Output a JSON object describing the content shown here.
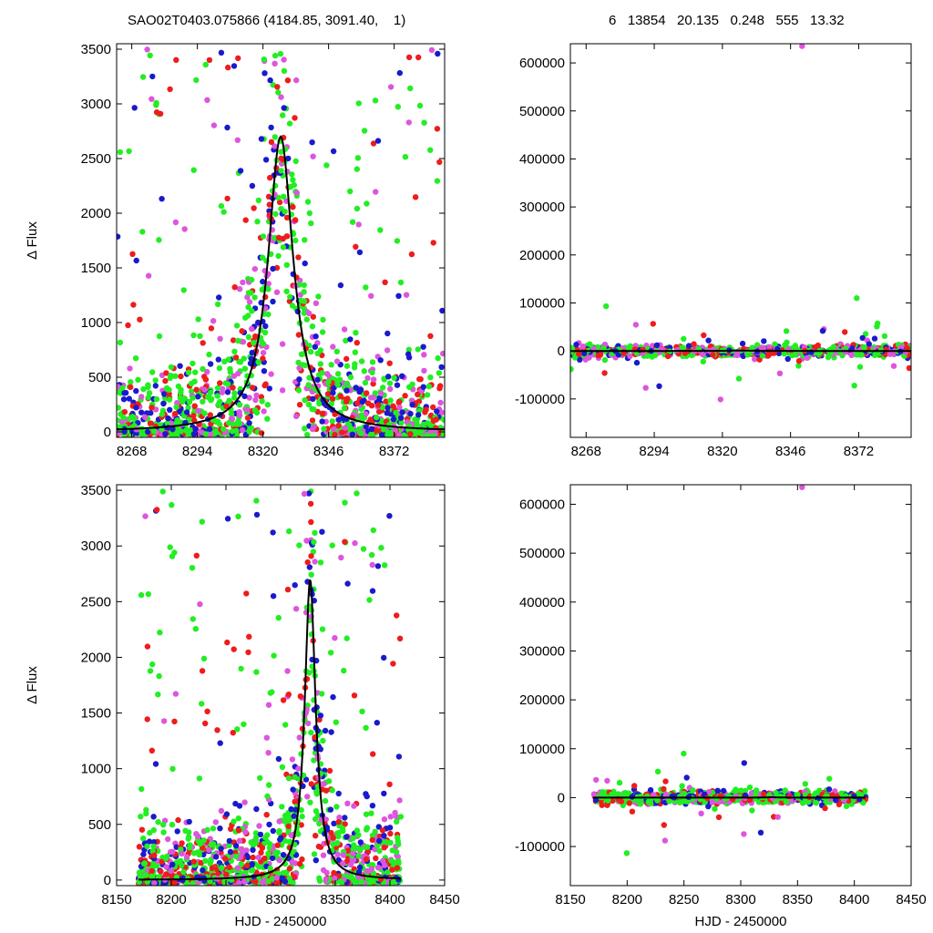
{
  "header": {
    "left": "SAO02T0403.075866 (4184.85, 3091.40,    1)",
    "right": "6   13854   20.135   0.248   555   13.32"
  },
  "colors": {
    "red": "#ee1c1c",
    "green": "#22ee22",
    "blue": "#1a1acc",
    "magenta": "#dd55dd",
    "model": "#000000"
  },
  "chart_data": [
    {
      "id": "top-left",
      "type": "scatter",
      "ylabel": "Δ Flux",
      "xlabel": "",
      "xlim": [
        8262,
        8392
      ],
      "ylim": [
        -50,
        3550
      ],
      "xticks": [
        8268,
        8294,
        8320,
        8346,
        8372
      ],
      "yticks": [
        0,
        500,
        1000,
        1500,
        2000,
        2500,
        3000,
        3500
      ],
      "model": {
        "peak_x": 8327,
        "peak_y": 2700,
        "width": 6
      },
      "data_range": [
        8262,
        8392
      ],
      "grid": false
    },
    {
      "id": "top-right",
      "type": "scatter",
      "ylabel": "",
      "xlabel": "",
      "xlim": [
        8262,
        8392
      ],
      "ylim": [
        -180000,
        640000
      ],
      "xticks": [
        8268,
        8294,
        8320,
        8346,
        8372
      ],
      "yticks": [
        -100000,
        0,
        100000,
        200000,
        300000,
        400000,
        500000,
        600000
      ],
      "model": {
        "peak_x": 8327,
        "peak_y": 2700,
        "width": 6
      },
      "data_range": [
        8262,
        8392
      ],
      "grid": false
    },
    {
      "id": "bottom-left",
      "type": "scatter",
      "ylabel": "Δ Flux",
      "xlabel": "HJD - 2450000",
      "xlim": [
        8150,
        8450
      ],
      "ylim": [
        -50,
        3550
      ],
      "xticks": [
        8150,
        8200,
        8250,
        8300,
        8350,
        8400,
        8450
      ],
      "yticks": [
        0,
        500,
        1000,
        1500,
        2000,
        2500,
        3000,
        3500
      ],
      "model": {
        "peak_x": 8327,
        "peak_y": 2700,
        "width": 6
      },
      "data_range": [
        8170,
        8410
      ],
      "grid": false
    },
    {
      "id": "bottom-right",
      "type": "scatter",
      "ylabel": "",
      "xlabel": "HJD - 2450000",
      "xlim": [
        8150,
        8450
      ],
      "ylim": [
        -180000,
        640000
      ],
      "xticks": [
        8150,
        8200,
        8250,
        8300,
        8350,
        8400,
        8450
      ],
      "yticks": [
        -100000,
        0,
        100000,
        200000,
        300000,
        400000,
        500000,
        600000
      ],
      "model": {
        "peak_x": 8327,
        "peak_y": 2700,
        "width": 6
      },
      "data_range": [
        8170,
        8410
      ],
      "grid": false
    }
  ]
}
